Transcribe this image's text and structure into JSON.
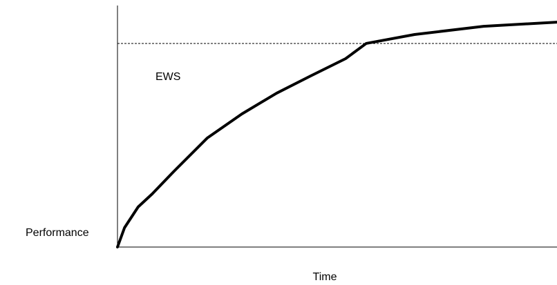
{
  "chart_data": {
    "type": "line",
    "xlabel": "Time",
    "ylabel": "Performance",
    "annotation": "EWS",
    "x": [
      0,
      1.6,
      4.7,
      7.9,
      12.6,
      20.4,
      28.3,
      36.2,
      44,
      51.9,
      56.6,
      67.6,
      83.3,
      100
    ],
    "values": [
      0,
      8,
      16.6,
      22,
      30.9,
      45.1,
      55.1,
      63.7,
      70.9,
      78,
      84.3,
      88,
      91.4,
      93.1
    ],
    "color": "#000000",
    "reference_line": 84.3,
    "xlim": [
      0,
      100
    ],
    "ylim": [
      0,
      100
    ]
  }
}
